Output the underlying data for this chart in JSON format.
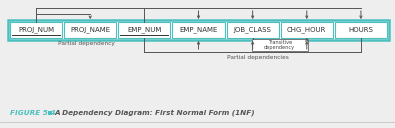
{
  "fields": [
    "PROJ_NUM",
    "PROJ_NAME",
    "EMP_NUM",
    "EMP_NAME",
    "JOB_CLASS",
    "CHG_HOUR",
    "HOURS"
  ],
  "underlined": [
    0,
    2
  ],
  "box_color": "#4dbfbf",
  "box_bg": "#ffffff",
  "box_text_color": "#333333",
  "bg_color": "#eeeeee",
  "figure_label": "FIGURE 5.4",
  "figure_label_color": "#4dbfbf",
  "figure_title": " ■ A Dependency Diagram: First Normal Form (1NF)",
  "figure_title_color": "#555555",
  "partial_dep_label": "Partial dependency",
  "partial_deps_label": "Partial dependencies",
  "transitive_label": "Transitive\ndependency",
  "arrow_color": "#555555",
  "lw": 0.7
}
